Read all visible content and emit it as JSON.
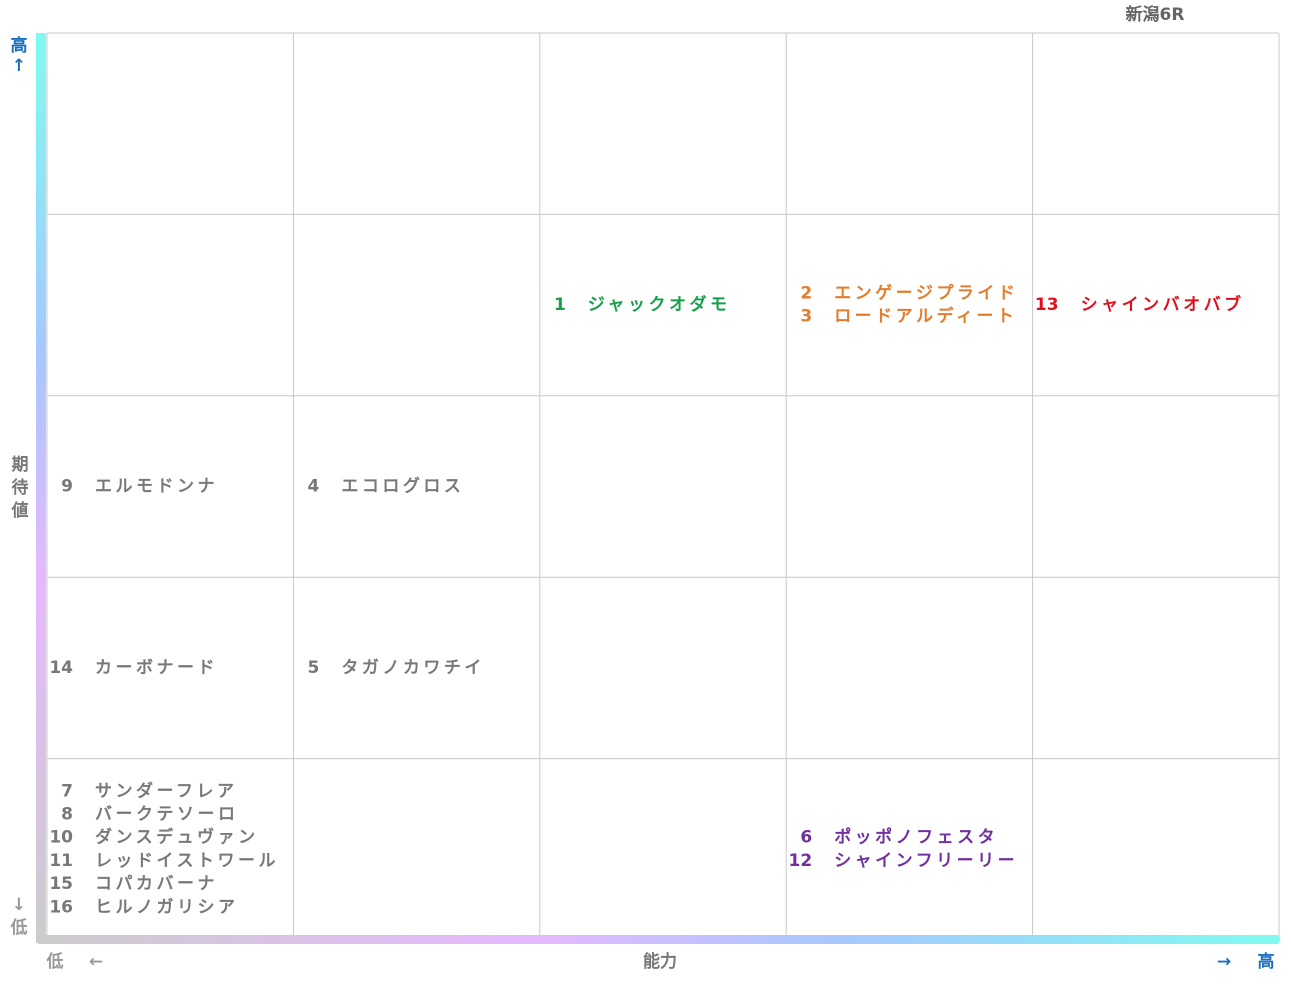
{
  "title": "新潟6R",
  "y_axis": {
    "high": "高",
    "high_arrow": "↑",
    "label": "期待値",
    "low_arrow": "↓",
    "low": "低"
  },
  "x_axis": {
    "low": "低",
    "low_arrow": "←",
    "label": "能力",
    "high_arrow": "→",
    "high": "高"
  },
  "grid": {
    "rows": [
      [
        [],
        [],
        [],
        [],
        []
      ],
      [
        [],
        [],
        [
          {
            "number": "1",
            "name": "ジャックオダモ",
            "color": "#16a04c"
          }
        ],
        [
          {
            "number": "2",
            "name": "エンゲージプライド",
            "color": "#e47c2c"
          },
          {
            "number": "3",
            "name": "ロードアルディート",
            "color": "#e47c2c"
          }
        ],
        [
          {
            "number": "13",
            "name": "シャインバオバブ",
            "color": "#e2101c"
          }
        ]
      ],
      [
        [
          {
            "number": "9",
            "name": "エルモドンナ",
            "color": "#787878"
          }
        ],
        [
          {
            "number": "4",
            "name": "エコログロス",
            "color": "#787878"
          }
        ],
        [],
        [],
        []
      ],
      [
        [
          {
            "number": "14",
            "name": "カーボナード",
            "color": "#787878"
          }
        ],
        [
          {
            "number": "5",
            "name": "タガノカワチイ",
            "color": "#787878"
          }
        ],
        [],
        [],
        []
      ],
      [
        [
          {
            "number": "7",
            "name": "サンダーフレア",
            "color": "#787878"
          },
          {
            "number": "8",
            "name": "バークテソーロ",
            "color": "#787878"
          },
          {
            "number": "10",
            "name": "ダンスデュヴァン",
            "color": "#787878"
          },
          {
            "number": "11",
            "name": "レッドイストワール",
            "color": "#787878"
          },
          {
            "number": "15",
            "name": "コパカバーナ",
            "color": "#787878"
          },
          {
            "number": "16",
            "name": "ヒルノガリシア",
            "color": "#787878"
          }
        ],
        [],
        [],
        [
          {
            "number": "6",
            "name": "ポッポノフェスタ",
            "color": "#7030a0"
          },
          {
            "number": "12",
            "name": "シャインフリーリー",
            "color": "#7030a0"
          }
        ],
        []
      ]
    ]
  }
}
